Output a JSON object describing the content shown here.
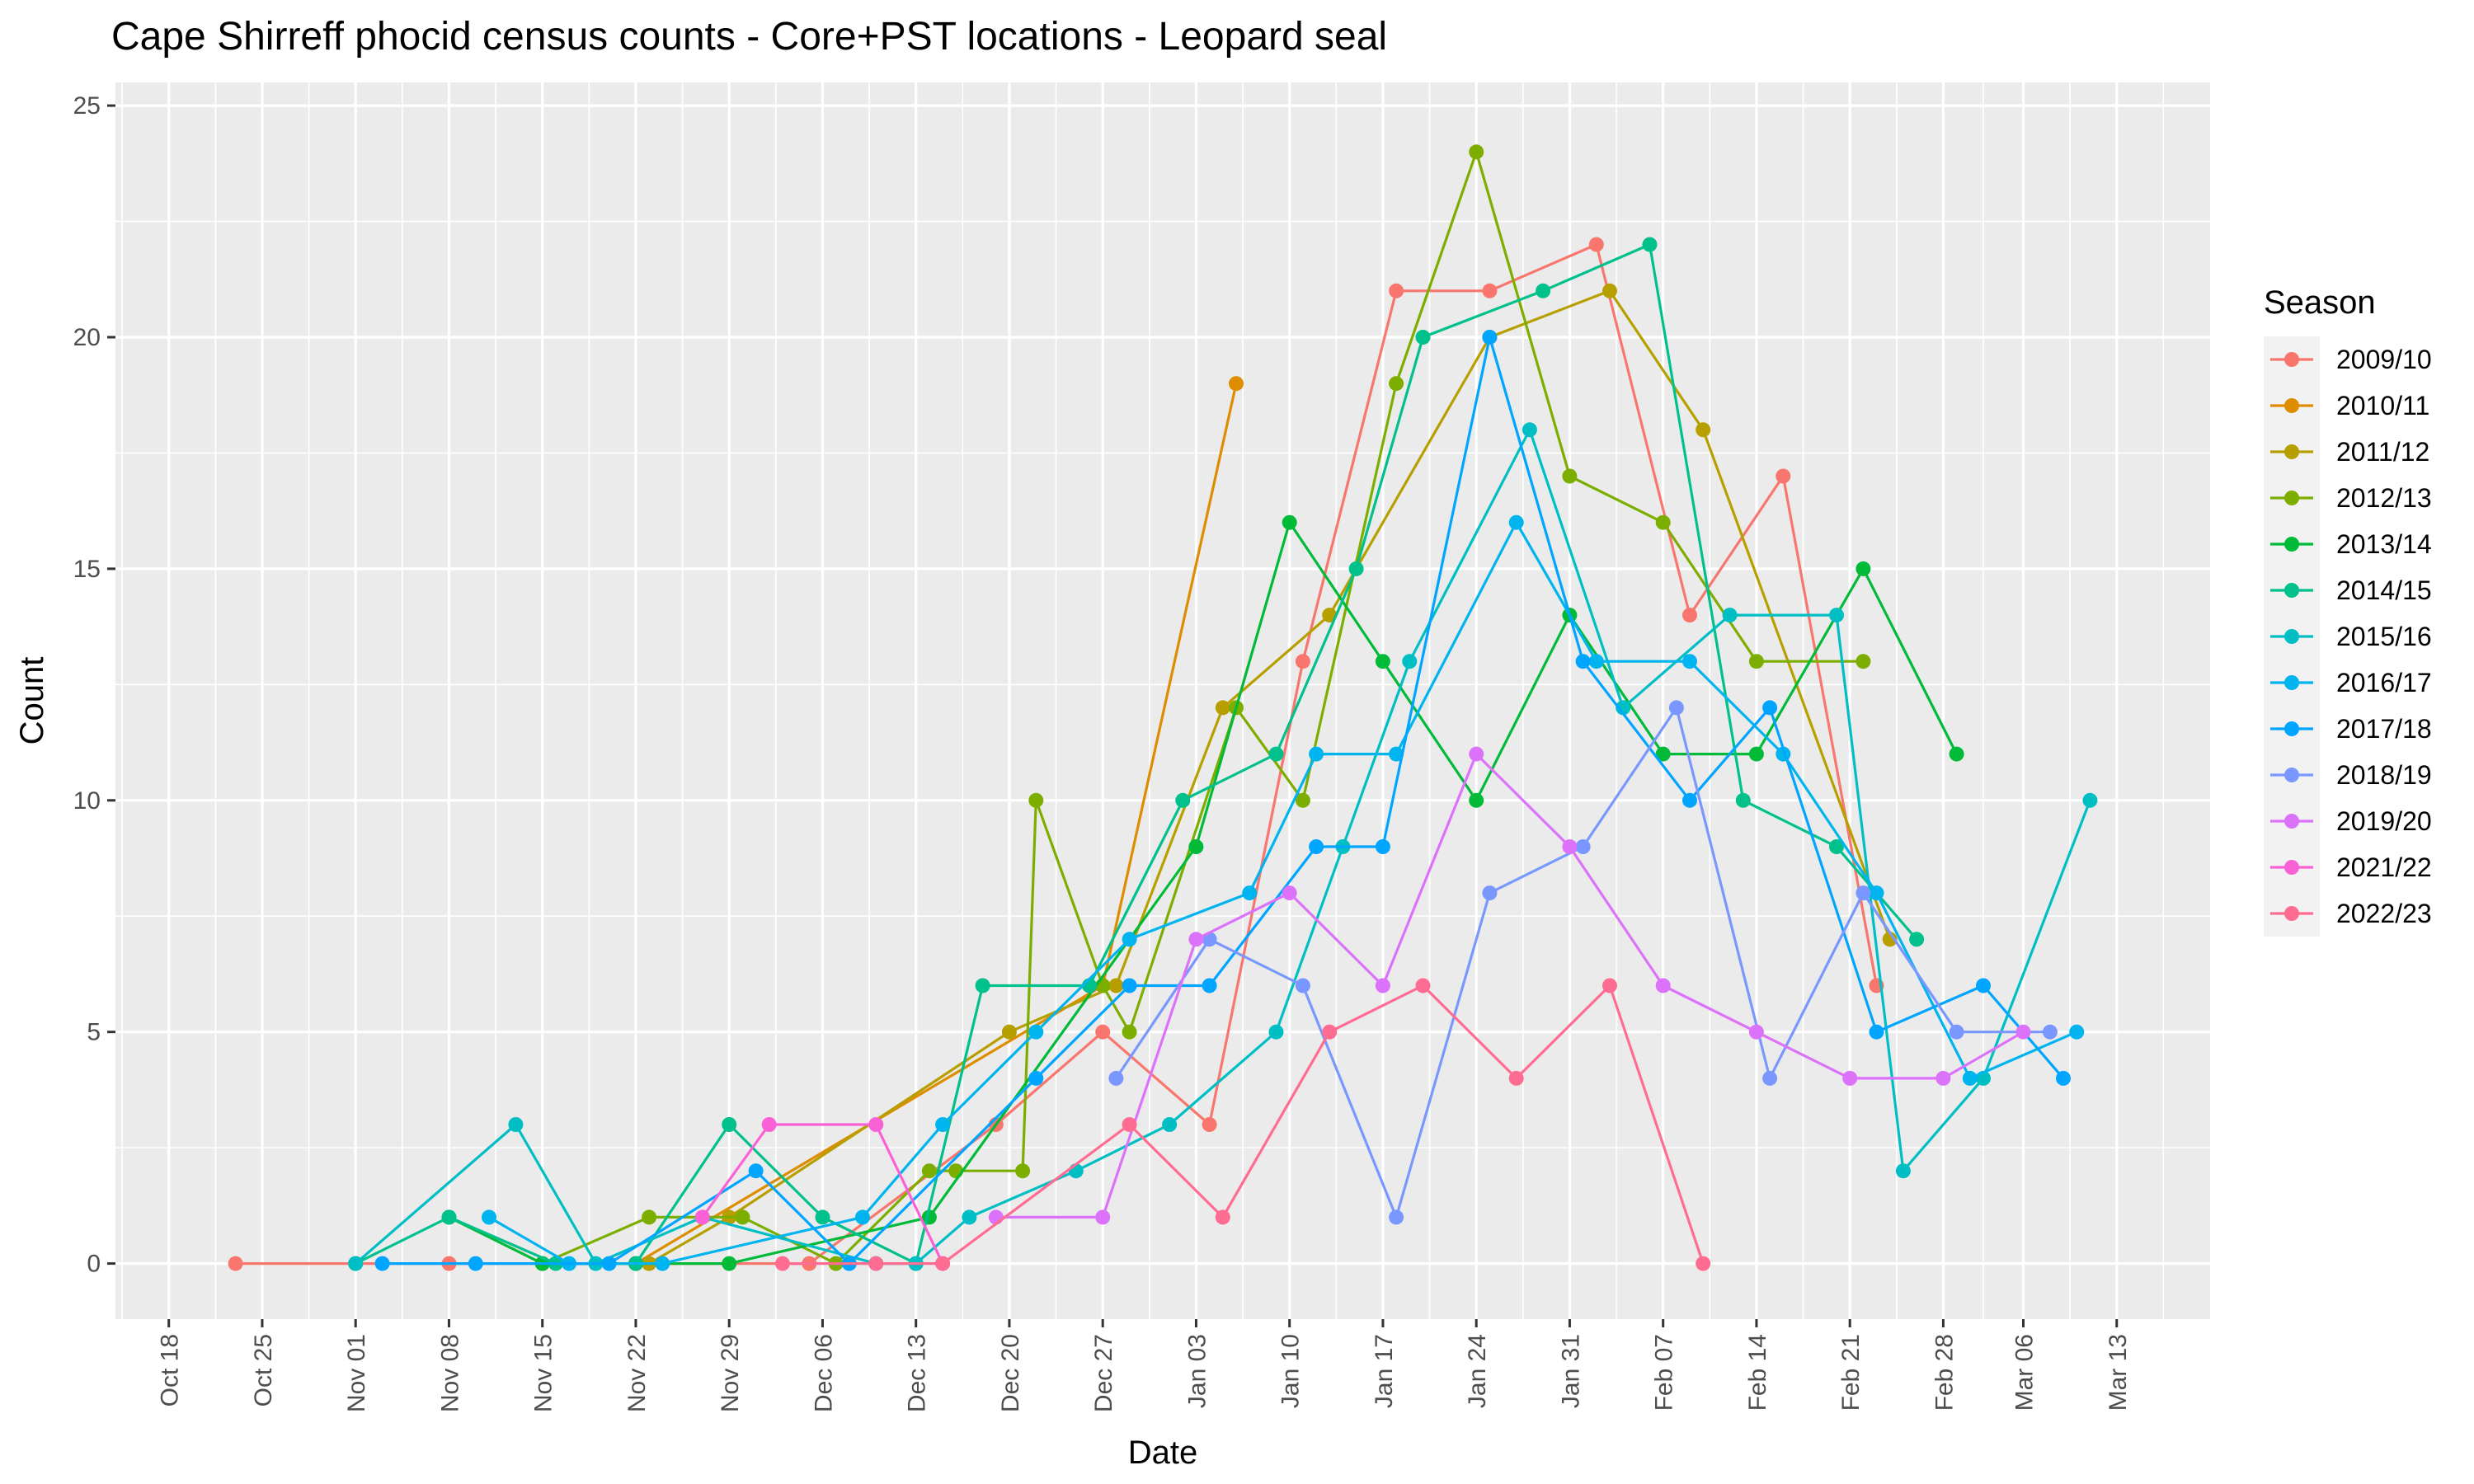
{
  "chart_data": {
    "type": "line",
    "title": "Cape Shirreff phocid census counts - Core+PST locations - Leopard seal",
    "xlabel": "Date",
    "ylabel": "Count",
    "x_axis": {
      "kind": "date",
      "range": [
        "2000-10-14",
        "2001-03-20"
      ],
      "ticks": [
        {
          "date": "2000-10-18",
          "label": "Oct 18"
        },
        {
          "date": "2000-10-25",
          "label": "Oct 25"
        },
        {
          "date": "2000-11-01",
          "label": "Nov 01"
        },
        {
          "date": "2000-11-08",
          "label": "Nov 08"
        },
        {
          "date": "2000-11-15",
          "label": "Nov 15"
        },
        {
          "date": "2000-11-22",
          "label": "Nov 22"
        },
        {
          "date": "2000-11-29",
          "label": "Nov 29"
        },
        {
          "date": "2000-12-06",
          "label": "Dec 06"
        },
        {
          "date": "2000-12-13",
          "label": "Dec 13"
        },
        {
          "date": "2000-12-20",
          "label": "Dec 20"
        },
        {
          "date": "2000-12-27",
          "label": "Dec 27"
        },
        {
          "date": "2001-01-03",
          "label": "Jan 03"
        },
        {
          "date": "2001-01-10",
          "label": "Jan 10"
        },
        {
          "date": "2001-01-17",
          "label": "Jan 17"
        },
        {
          "date": "2001-01-24",
          "label": "Jan 24"
        },
        {
          "date": "2001-01-31",
          "label": "Jan 31"
        },
        {
          "date": "2001-02-07",
          "label": "Feb 07"
        },
        {
          "date": "2001-02-14",
          "label": "Feb 14"
        },
        {
          "date": "2001-02-21",
          "label": "Feb 21"
        },
        {
          "date": "2001-02-28",
          "label": "Feb 28"
        },
        {
          "date": "2001-03-06",
          "label": "Mar 06"
        },
        {
          "date": "2001-03-13",
          "label": "Mar 13"
        }
      ]
    },
    "y_axis": {
      "range": [
        -1.2,
        25.5
      ],
      "ticks": [
        0,
        5,
        10,
        15,
        20,
        25
      ]
    },
    "grid": true,
    "legend": {
      "title": "Season",
      "position": "right"
    },
    "series": [
      {
        "name": "2009/10",
        "color": "#F8766D",
        "points": [
          [
            "2000-10-23",
            0
          ],
          [
            "2000-11-01",
            0
          ],
          [
            "2000-11-08",
            0
          ],
          [
            "2000-12-05",
            0
          ],
          [
            "2000-12-19",
            3
          ],
          [
            "2000-12-27",
            5
          ],
          [
            "2001-01-04",
            3
          ],
          [
            "2001-01-11",
            13
          ],
          [
            "2001-01-18",
            21
          ],
          [
            "2001-01-25",
            21
          ],
          [
            "2001-02-02",
            22
          ],
          [
            "2001-02-09",
            14
          ],
          [
            "2001-02-16",
            17
          ],
          [
            "2001-02-23",
            6
          ]
        ]
      },
      {
        "name": "2010/11",
        "color": "#DE8C00",
        "points": [
          [
            "2000-11-22",
            0
          ],
          [
            "2000-12-27",
            6
          ],
          [
            "2001-01-06",
            19
          ]
        ]
      },
      {
        "name": "2011/12",
        "color": "#B79F00",
        "points": [
          [
            "2000-11-23",
            0
          ],
          [
            "2000-11-29",
            1
          ],
          [
            "2000-12-20",
            5
          ],
          [
            "2000-12-28",
            6
          ],
          [
            "2001-01-05",
            12
          ],
          [
            "2001-01-13",
            14
          ],
          [
            "2001-01-25",
            20
          ],
          [
            "2001-02-03",
            21
          ],
          [
            "2001-02-10",
            18
          ],
          [
            "2001-02-24",
            7
          ]
        ]
      },
      {
        "name": "2012/13",
        "color": "#7CAE00",
        "points": [
          [
            "2000-11-15",
            0
          ],
          [
            "2000-11-23",
            1
          ],
          [
            "2000-11-30",
            1
          ],
          [
            "2000-12-07",
            0
          ],
          [
            "2000-12-14",
            2
          ],
          [
            "2000-12-16",
            2
          ],
          [
            "2000-12-21",
            2
          ],
          [
            "2000-12-22",
            10
          ],
          [
            "2000-12-27",
            6
          ],
          [
            "2000-12-29",
            5
          ],
          [
            "2001-01-06",
            12
          ],
          [
            "2001-01-11",
            10
          ],
          [
            "2001-01-18",
            19
          ],
          [
            "2001-01-24",
            24
          ],
          [
            "2001-01-31",
            17
          ],
          [
            "2001-02-07",
            16
          ],
          [
            "2001-02-14",
            13
          ],
          [
            "2001-02-22",
            13
          ]
        ]
      },
      {
        "name": "2013/14",
        "color": "#00BA38",
        "points": [
          [
            "2000-11-08",
            1
          ],
          [
            "2000-11-15",
            0
          ],
          [
            "2000-11-22",
            0
          ],
          [
            "2000-11-29",
            0
          ],
          [
            "2000-12-14",
            1
          ],
          [
            "2001-01-03",
            9
          ],
          [
            "2001-01-10",
            16
          ],
          [
            "2001-01-17",
            13
          ],
          [
            "2001-01-24",
            10
          ],
          [
            "2001-01-31",
            14
          ],
          [
            "2001-02-07",
            11
          ],
          [
            "2001-02-14",
            11
          ],
          [
            "2001-02-22",
            15
          ],
          [
            "2001-03-01",
            11
          ]
        ]
      },
      {
        "name": "2014/15",
        "color": "#00C08B",
        "points": [
          [
            "2000-11-01",
            0
          ],
          [
            "2000-11-08",
            1
          ],
          [
            "2000-11-16",
            0
          ],
          [
            "2000-11-22",
            0
          ],
          [
            "2000-11-29",
            3
          ],
          [
            "2000-12-06",
            1
          ],
          [
            "2000-12-13",
            0
          ],
          [
            "2000-12-18",
            6
          ],
          [
            "2000-12-26",
            6
          ],
          [
            "2001-01-02",
            10
          ],
          [
            "2001-01-09",
            11
          ],
          [
            "2001-01-15",
            15
          ],
          [
            "2001-01-20",
            20
          ],
          [
            "2001-01-29",
            21
          ],
          [
            "2001-02-06",
            22
          ],
          [
            "2001-02-13",
            10
          ],
          [
            "2001-02-20",
            9
          ],
          [
            "2001-02-26",
            7
          ]
        ]
      },
      {
        "name": "2015/16",
        "color": "#00BFC4",
        "points": [
          [
            "2000-11-01",
            0
          ],
          [
            "2000-11-13",
            3
          ],
          [
            "2000-11-19",
            0
          ],
          [
            "2000-11-27",
            1
          ],
          [
            "2000-12-10",
            0
          ],
          [
            "2000-12-13",
            0
          ],
          [
            "2000-12-17",
            1
          ],
          [
            "2000-12-25",
            2
          ],
          [
            "2001-01-01",
            3
          ],
          [
            "2001-01-09",
            5
          ],
          [
            "2001-01-14",
            9
          ],
          [
            "2001-01-19",
            13
          ],
          [
            "2001-01-28",
            18
          ],
          [
            "2001-02-04",
            12
          ],
          [
            "2001-02-12",
            14
          ],
          [
            "2001-02-20",
            14
          ],
          [
            "2001-02-25",
            2
          ],
          [
            "2001-03-03",
            4
          ],
          [
            "2001-03-11",
            10
          ]
        ]
      },
      {
        "name": "2016/17",
        "color": "#00B4EF",
        "points": [
          [
            "2000-11-11",
            1
          ],
          [
            "2000-11-17",
            0
          ],
          [
            "2000-11-24",
            0
          ],
          [
            "2000-12-09",
            1
          ],
          [
            "2000-12-15",
            3
          ],
          [
            "2000-12-22",
            5
          ],
          [
            "2000-12-29",
            7
          ],
          [
            "2001-01-07",
            8
          ],
          [
            "2001-01-12",
            11
          ],
          [
            "2001-01-18",
            11
          ],
          [
            "2001-01-27",
            16
          ],
          [
            "2001-02-02",
            13
          ],
          [
            "2001-02-09",
            13
          ],
          [
            "2001-02-16",
            11
          ],
          [
            "2001-02-23",
            8
          ],
          [
            "2001-03-02",
            4
          ],
          [
            "2001-03-10",
            5
          ]
        ]
      },
      {
        "name": "2017/18",
        "color": "#00A5FF",
        "points": [
          [
            "2000-11-03",
            0
          ],
          [
            "2000-11-10",
            0
          ],
          [
            "2000-11-20",
            0
          ],
          [
            "2000-12-01",
            2
          ],
          [
            "2000-12-08",
            0
          ],
          [
            "2000-12-22",
            4
          ],
          [
            "2000-12-29",
            6
          ],
          [
            "2001-01-04",
            6
          ],
          [
            "2001-01-12",
            9
          ],
          [
            "2001-01-17",
            9
          ],
          [
            "2001-01-25",
            20
          ],
          [
            "2001-02-01",
            13
          ],
          [
            "2001-02-09",
            10
          ],
          [
            "2001-02-15",
            12
          ],
          [
            "2001-02-23",
            5
          ],
          [
            "2001-03-03",
            6
          ],
          [
            "2001-03-09",
            4
          ]
        ]
      },
      {
        "name": "2018/19",
        "color": "#7997FF",
        "points": [
          [
            "2000-12-28",
            4
          ],
          [
            "2001-01-04",
            7
          ],
          [
            "2001-01-11",
            6
          ],
          [
            "2001-01-18",
            1
          ],
          [
            "2001-01-25",
            8
          ],
          [
            "2001-02-01",
            9
          ],
          [
            "2001-02-08",
            12
          ],
          [
            "2001-02-15",
            4
          ],
          [
            "2001-02-22",
            8
          ],
          [
            "2001-03-01",
            5
          ],
          [
            "2001-03-08",
            5
          ]
        ]
      },
      {
        "name": "2019/20",
        "color": "#DC71FA",
        "points": [
          [
            "2000-12-19",
            1
          ],
          [
            "2000-12-27",
            1
          ],
          [
            "2001-01-03",
            7
          ],
          [
            "2001-01-10",
            8
          ],
          [
            "2001-01-17",
            6
          ],
          [
            "2001-01-24",
            11
          ],
          [
            "2001-01-31",
            9
          ],
          [
            "2001-02-07",
            6
          ],
          [
            "2001-02-14",
            5
          ],
          [
            "2001-02-21",
            4
          ],
          [
            "2001-02-28",
            4
          ],
          [
            "2001-03-06",
            5
          ]
        ]
      },
      {
        "name": "2021/22",
        "color": "#FB61D7",
        "points": [
          [
            "2000-11-27",
            1
          ],
          [
            "2000-12-02",
            3
          ],
          [
            "2000-12-10",
            3
          ],
          [
            "2000-12-15",
            0
          ]
        ]
      },
      {
        "name": "2022/23",
        "color": "#FF6C91",
        "points": [
          [
            "2000-12-03",
            0
          ],
          [
            "2000-12-10",
            0
          ],
          [
            "2000-12-15",
            0
          ],
          [
            "2000-12-29",
            3
          ],
          [
            "2001-01-05",
            1
          ],
          [
            "2001-01-13",
            5
          ],
          [
            "2001-01-20",
            6
          ],
          [
            "2001-01-27",
            4
          ],
          [
            "2001-02-03",
            6
          ],
          [
            "2001-02-10",
            0
          ]
        ]
      }
    ]
  }
}
